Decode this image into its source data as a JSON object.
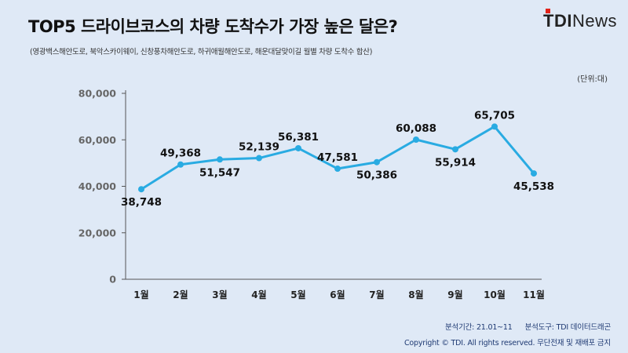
{
  "header": {
    "title": "TOP5 드라이브코스의 차량 도착수가 가장 높은 달은?",
    "subtitle": "(영광백스해안도로, 북악스카이웨이, 신창풍차해안도로, 하귀애월해안도로, 해운대달맞이길 월별 차량 도착수 합산)",
    "unit": "(단위:대)"
  },
  "logo": {
    "part1": "TDI",
    "part2": "News",
    "accent_color": "#e2231a"
  },
  "footer": {
    "period": "분석기간: 21.01~11",
    "tool": "분석도구: TDI 데이터드래곤",
    "copyright": "Copyright © TDI. All rights reserved. 무단전재 및 재배포 금지"
  },
  "colors": {
    "line": "#29abe2",
    "axis": "#555555",
    "grid": "#b8c4d4",
    "background": "#dfe9f6"
  },
  "chart_data": {
    "type": "line",
    "categories": [
      "1월",
      "2월",
      "3월",
      "4월",
      "5월",
      "6월",
      "7월",
      "8월",
      "9월",
      "10월",
      "11월"
    ],
    "values": [
      38748,
      49368,
      51547,
      52139,
      56381,
      47581,
      50386,
      60088,
      55914,
      65705,
      45538
    ],
    "value_labels": [
      "38,748",
      "49,368",
      "51,547",
      "52,139",
      "56,381",
      "47,581",
      "50,386",
      "60,088",
      "55,914",
      "65,705",
      "45,538"
    ],
    "label_position": [
      "below",
      "above",
      "below",
      "above",
      "above",
      "above",
      "below",
      "above",
      "below",
      "above",
      "below"
    ],
    "yticks": [
      0,
      20000,
      40000,
      60000,
      80000
    ],
    "ytick_labels": [
      "0",
      "20,000",
      "40,000",
      "60,000",
      "80,000"
    ],
    "ylim": [
      0,
      80000
    ],
    "grid": false,
    "legend": "none"
  }
}
